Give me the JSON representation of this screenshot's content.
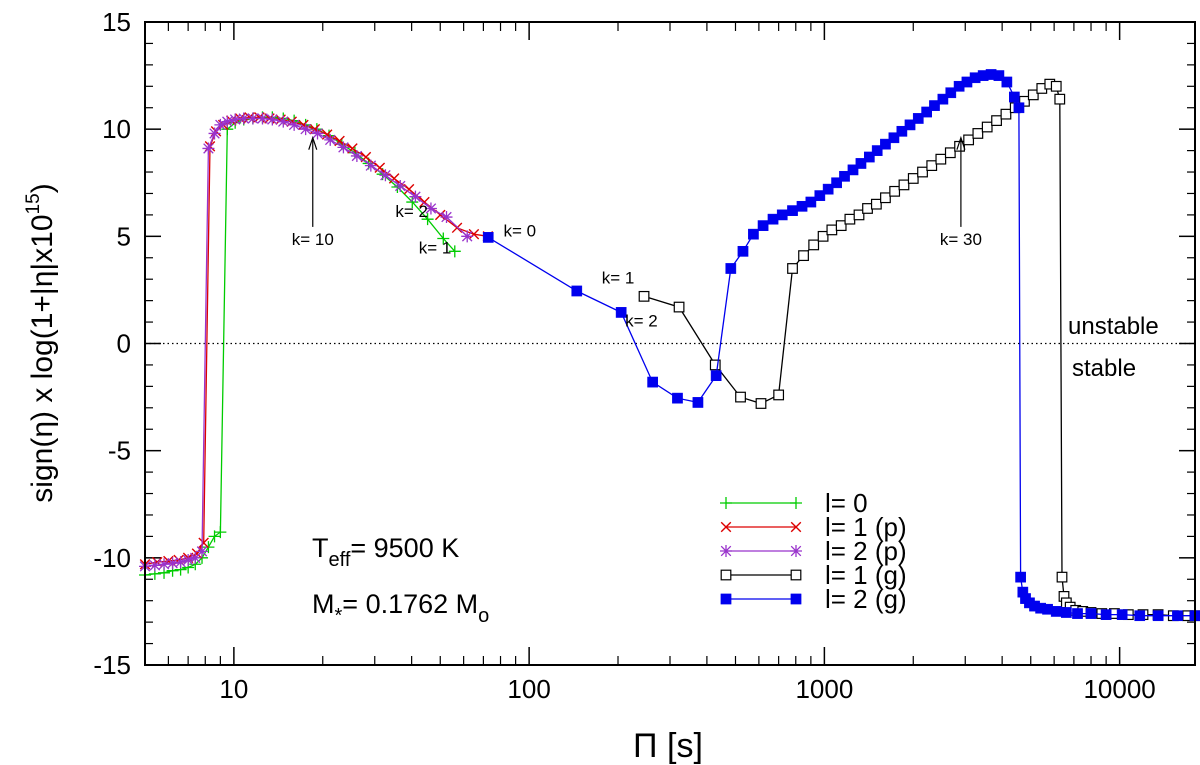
{
  "chart_data": {
    "type": "line",
    "xlabel": "Π [s]",
    "ylabel_parts": [
      "sign(",
      "η",
      ") x log(1+|",
      "η",
      "|x10",
      "15",
      ")"
    ],
    "x_scale": "log",
    "xlim": [
      5,
      18000
    ],
    "ylim": [
      -15,
      15
    ],
    "x_ticks": [
      10,
      100,
      1000,
      10000
    ],
    "x_tick_labels": [
      "10",
      "100",
      "1000",
      "10000"
    ],
    "y_ticks": [
      -15,
      -10,
      -5,
      0,
      5,
      10,
      15
    ],
    "y_tick_labels": [
      "-15",
      "-10",
      "-5",
      "0",
      "5",
      "10",
      "15"
    ],
    "grid": false,
    "legend_position": "bottom-right",
    "reference_line": {
      "y": 0,
      "style": "dotted"
    },
    "region_labels": {
      "above": "unstable",
      "below": "stable"
    },
    "info_text": {
      "teff_prefix": "T",
      "teff_sub": "eff",
      "teff_value": "= 9500 K",
      "mass_prefix": "M",
      "mass_sub": "*",
      "mass_value": "= 0.1762 M",
      "mass_unit_sub": "o"
    },
    "annotations": [
      {
        "text": "k= 10",
        "x": 18.5,
        "y": 9.6,
        "label_y": 4.6,
        "arrow": true
      },
      {
        "text": "k= 30",
        "x": 2900,
        "y": 9.6,
        "label_y": 4.6,
        "arrow": true
      },
      {
        "text": "k= 2",
        "x": 40,
        "y": 5.9,
        "arrow": false
      },
      {
        "text": "k= 1",
        "x": 48,
        "y": 4.2,
        "arrow": false
      },
      {
        "text": "k= 0",
        "x": 93,
        "y": 5.0,
        "arrow": false
      },
      {
        "text": "k= 1",
        "x": 200,
        "y": 2.8,
        "arrow": false
      },
      {
        "text": "k= 2",
        "x": 240,
        "y": 0.8,
        "arrow": false
      }
    ],
    "series": [
      {
        "name": "l= 0",
        "color": "#00cc00",
        "marker": "plus",
        "x": [
          5,
          5.4,
          5.8,
          6.2,
          6.6,
          7.0,
          7.4,
          7.8,
          8.2,
          8.6,
          9.0,
          9.5,
          10.1,
          10.8,
          11.6,
          12.5,
          13.5,
          14.7,
          16.0,
          17.5,
          19.1,
          21.0,
          23.2,
          25.7,
          28.6,
          31.9,
          35.8,
          40.2,
          45.3,
          51.2,
          56
        ],
        "y": [
          -10.8,
          -10.75,
          -10.7,
          -10.6,
          -10.55,
          -10.45,
          -10.3,
          -10.0,
          -9.5,
          -9.0,
          -8.8,
          10.0,
          10.3,
          10.45,
          10.5,
          10.55,
          10.55,
          10.5,
          10.4,
          10.2,
          10.0,
          9.7,
          9.3,
          8.9,
          8.4,
          7.9,
          7.3,
          6.6,
          5.8,
          4.9,
          4.3
        ]
      },
      {
        "name": "l= 1 (p)",
        "color": "#dd0000",
        "marker": "x",
        "x": [
          5,
          5.5,
          6,
          6.5,
          7.0,
          7.5,
          7.9,
          8.3,
          8.7,
          9.2,
          9.8,
          10.5,
          11.3,
          12.2,
          13.2,
          14.4,
          15.7,
          17.2,
          18.8,
          20.7,
          22.8,
          25.2,
          28.0,
          31.2,
          34.9,
          39.2,
          44.2,
          50.0,
          57.0,
          65.0,
          72.5
        ],
        "y": [
          -10.3,
          -10.2,
          -10.15,
          -10.1,
          -10.0,
          -9.8,
          -9.3,
          9.2,
          9.9,
          10.2,
          10.4,
          10.5,
          10.55,
          10.55,
          10.5,
          10.45,
          10.35,
          10.2,
          10.0,
          9.75,
          9.45,
          9.1,
          8.7,
          8.2,
          7.7,
          7.2,
          6.6,
          6.0,
          5.4,
          5.1,
          5.0
        ]
      },
      {
        "name": "l= 2 (p)",
        "color": "#9933cc",
        "marker": "asterisk",
        "x": [
          5,
          5.4,
          5.8,
          6.2,
          6.6,
          7.0,
          7.4,
          7.8,
          8.2,
          8.6,
          9.0,
          9.5,
          10.1,
          10.8,
          11.6,
          12.5,
          13.5,
          14.7,
          16.0,
          17.5,
          19.2,
          21.2,
          23.5,
          26.1,
          29.1,
          32.6,
          36.6,
          41.2,
          46.5,
          52.5,
          61.7
        ],
        "y": [
          -10.4,
          -10.35,
          -10.3,
          -10.25,
          -10.2,
          -10.1,
          -10.0,
          -9.7,
          9.1,
          9.8,
          10.2,
          10.35,
          10.45,
          10.5,
          10.5,
          10.5,
          10.45,
          10.35,
          10.2,
          10.0,
          9.8,
          9.5,
          9.15,
          8.75,
          8.3,
          7.85,
          7.35,
          6.85,
          6.3,
          5.9,
          5.0
        ]
      },
      {
        "name": "l= 1 (g)",
        "color": "#000000",
        "marker": "square-open",
        "x": [
          245,
          322,
          427,
          520,
          610,
          700,
          780,
          850,
          920,
          990,
          1060,
          1140,
          1220,
          1310,
          1400,
          1500,
          1610,
          1730,
          1860,
          2000,
          2150,
          2310,
          2480,
          2670,
          2870,
          3080,
          3310,
          3560,
          3830,
          4120,
          4430,
          4760,
          5100,
          5450,
          5800,
          6100,
          6270,
          6380,
          6480,
          6600,
          6800,
          7100,
          7500,
          8000,
          8700,
          9600,
          10700,
          12000,
          13500,
          15200,
          17000,
          18000
        ],
        "y": [
          2.2,
          1.7,
          -1.0,
          -2.5,
          -2.8,
          -2.4,
          3.5,
          4.1,
          4.6,
          5.0,
          5.3,
          5.5,
          5.8,
          6.0,
          6.3,
          6.5,
          6.8,
          7.1,
          7.4,
          7.7,
          8.0,
          8.3,
          8.6,
          8.9,
          9.2,
          9.5,
          9.8,
          10.1,
          10.4,
          10.7,
          11.0,
          11.3,
          11.6,
          11.9,
          12.1,
          12.0,
          11.4,
          -10.9,
          -11.8,
          -12.1,
          -12.3,
          -12.45,
          -12.5,
          -12.55,
          -12.6,
          -12.6,
          -12.65,
          -12.65,
          -12.65,
          -12.7,
          -12.7,
          -12.7
        ]
      },
      {
        "name": "l= 2 (g)",
        "color": "#0000ee",
        "marker": "square-filled",
        "x": [
          72.7,
          145,
          205,
          262,
          318,
          373,
          430,
          482,
          530,
          575,
          620,
          670,
          720,
          780,
          840,
          900,
          965,
          1030,
          1100,
          1170,
          1250,
          1330,
          1420,
          1510,
          1610,
          1720,
          1830,
          1950,
          2080,
          2220,
          2360,
          2520,
          2680,
          2860,
          3040,
          3240,
          3450,
          3670,
          3900,
          4150,
          4400,
          4560,
          4620,
          4700,
          4800,
          4950,
          5150,
          5400,
          5700,
          6100,
          6600,
          7200,
          8000,
          9000,
          10200,
          11700,
          13500,
          15700,
          18000
        ],
        "y": [
          4.95,
          2.45,
          1.45,
          -1.8,
          -2.55,
          -2.75,
          -1.5,
          3.5,
          4.3,
          5.1,
          5.5,
          5.8,
          6.0,
          6.2,
          6.4,
          6.6,
          6.9,
          7.2,
          7.5,
          7.8,
          8.1,
          8.4,
          8.7,
          9.0,
          9.3,
          9.6,
          9.9,
          10.2,
          10.5,
          10.8,
          11.1,
          11.4,
          11.7,
          12.0,
          12.2,
          12.4,
          12.5,
          12.55,
          12.5,
          12.2,
          11.5,
          11.0,
          -10.9,
          -11.6,
          -11.9,
          -12.1,
          -12.25,
          -12.35,
          -12.4,
          -12.5,
          -12.55,
          -12.6,
          -12.6,
          -12.65,
          -12.65,
          -12.7,
          -12.7,
          -12.7,
          -12.7
        ]
      }
    ]
  }
}
